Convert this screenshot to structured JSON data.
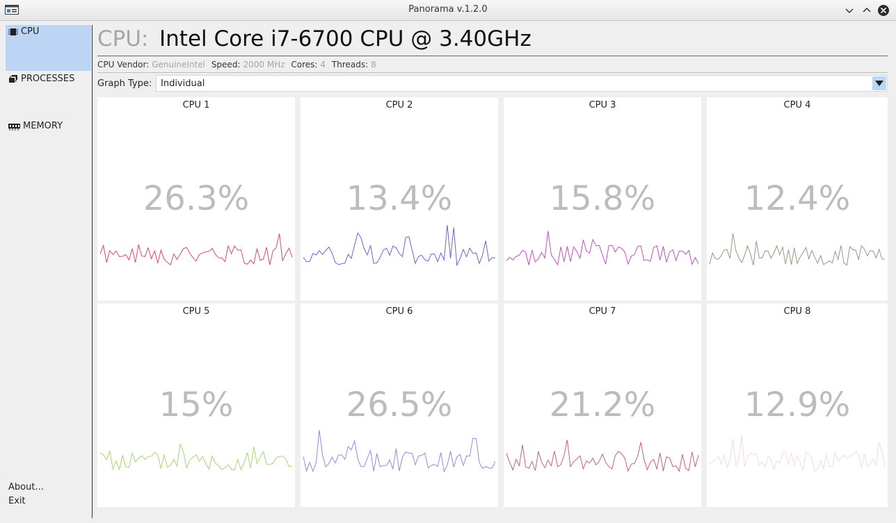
{
  "window": {
    "title": "Panorama v.1.2.0"
  },
  "sidebar": {
    "items": [
      {
        "label": "CPU",
        "icon": "chip-icon",
        "active": true
      },
      {
        "label": "PROCESSES",
        "icon": "processes-icon",
        "active": false
      },
      {
        "label": "MEMORY",
        "icon": "memory-icon",
        "active": false
      }
    ],
    "about": "About...",
    "exit": "Exit"
  },
  "cpu": {
    "prefix": "CPU:",
    "model": "Intel Core i7-6700 CPU @ 3.40GHz",
    "vendor_label": "CPU Vendor:",
    "vendor": "GenuineIntel",
    "speed_label": "Speed:",
    "speed": "2000 MHz",
    "cores_label": "Cores:",
    "cores": "4",
    "threads_label": "Threads:",
    "threads": "8"
  },
  "graph_type": {
    "label": "Graph Type:",
    "value": "Individual"
  },
  "colors": {
    "accent": "#bcd5f4",
    "percent_text": "#bcbcbc"
  },
  "panels": [
    {
      "title": "CPU 1",
      "value": "26.3%",
      "color": "#e2485e"
    },
    {
      "title": "CPU 2",
      "value": "13.4%",
      "color": "#7a5ae0"
    },
    {
      "title": "CPU 3",
      "value": "15.8%",
      "color": "#c64fb8"
    },
    {
      "title": "CPU 4",
      "value": "12.4%",
      "color": "#9a9582"
    },
    {
      "title": "CPU 5",
      "value": "15%",
      "color": "#a6d671"
    },
    {
      "title": "CPU 6",
      "value": "26.5%",
      "color": "#9a86df"
    },
    {
      "title": "CPU 7",
      "value": "21.2%",
      "color": "#c8626a"
    },
    {
      "title": "CPU 8",
      "value": "12.9%",
      "color": "#efd8ef"
    }
  ]
}
